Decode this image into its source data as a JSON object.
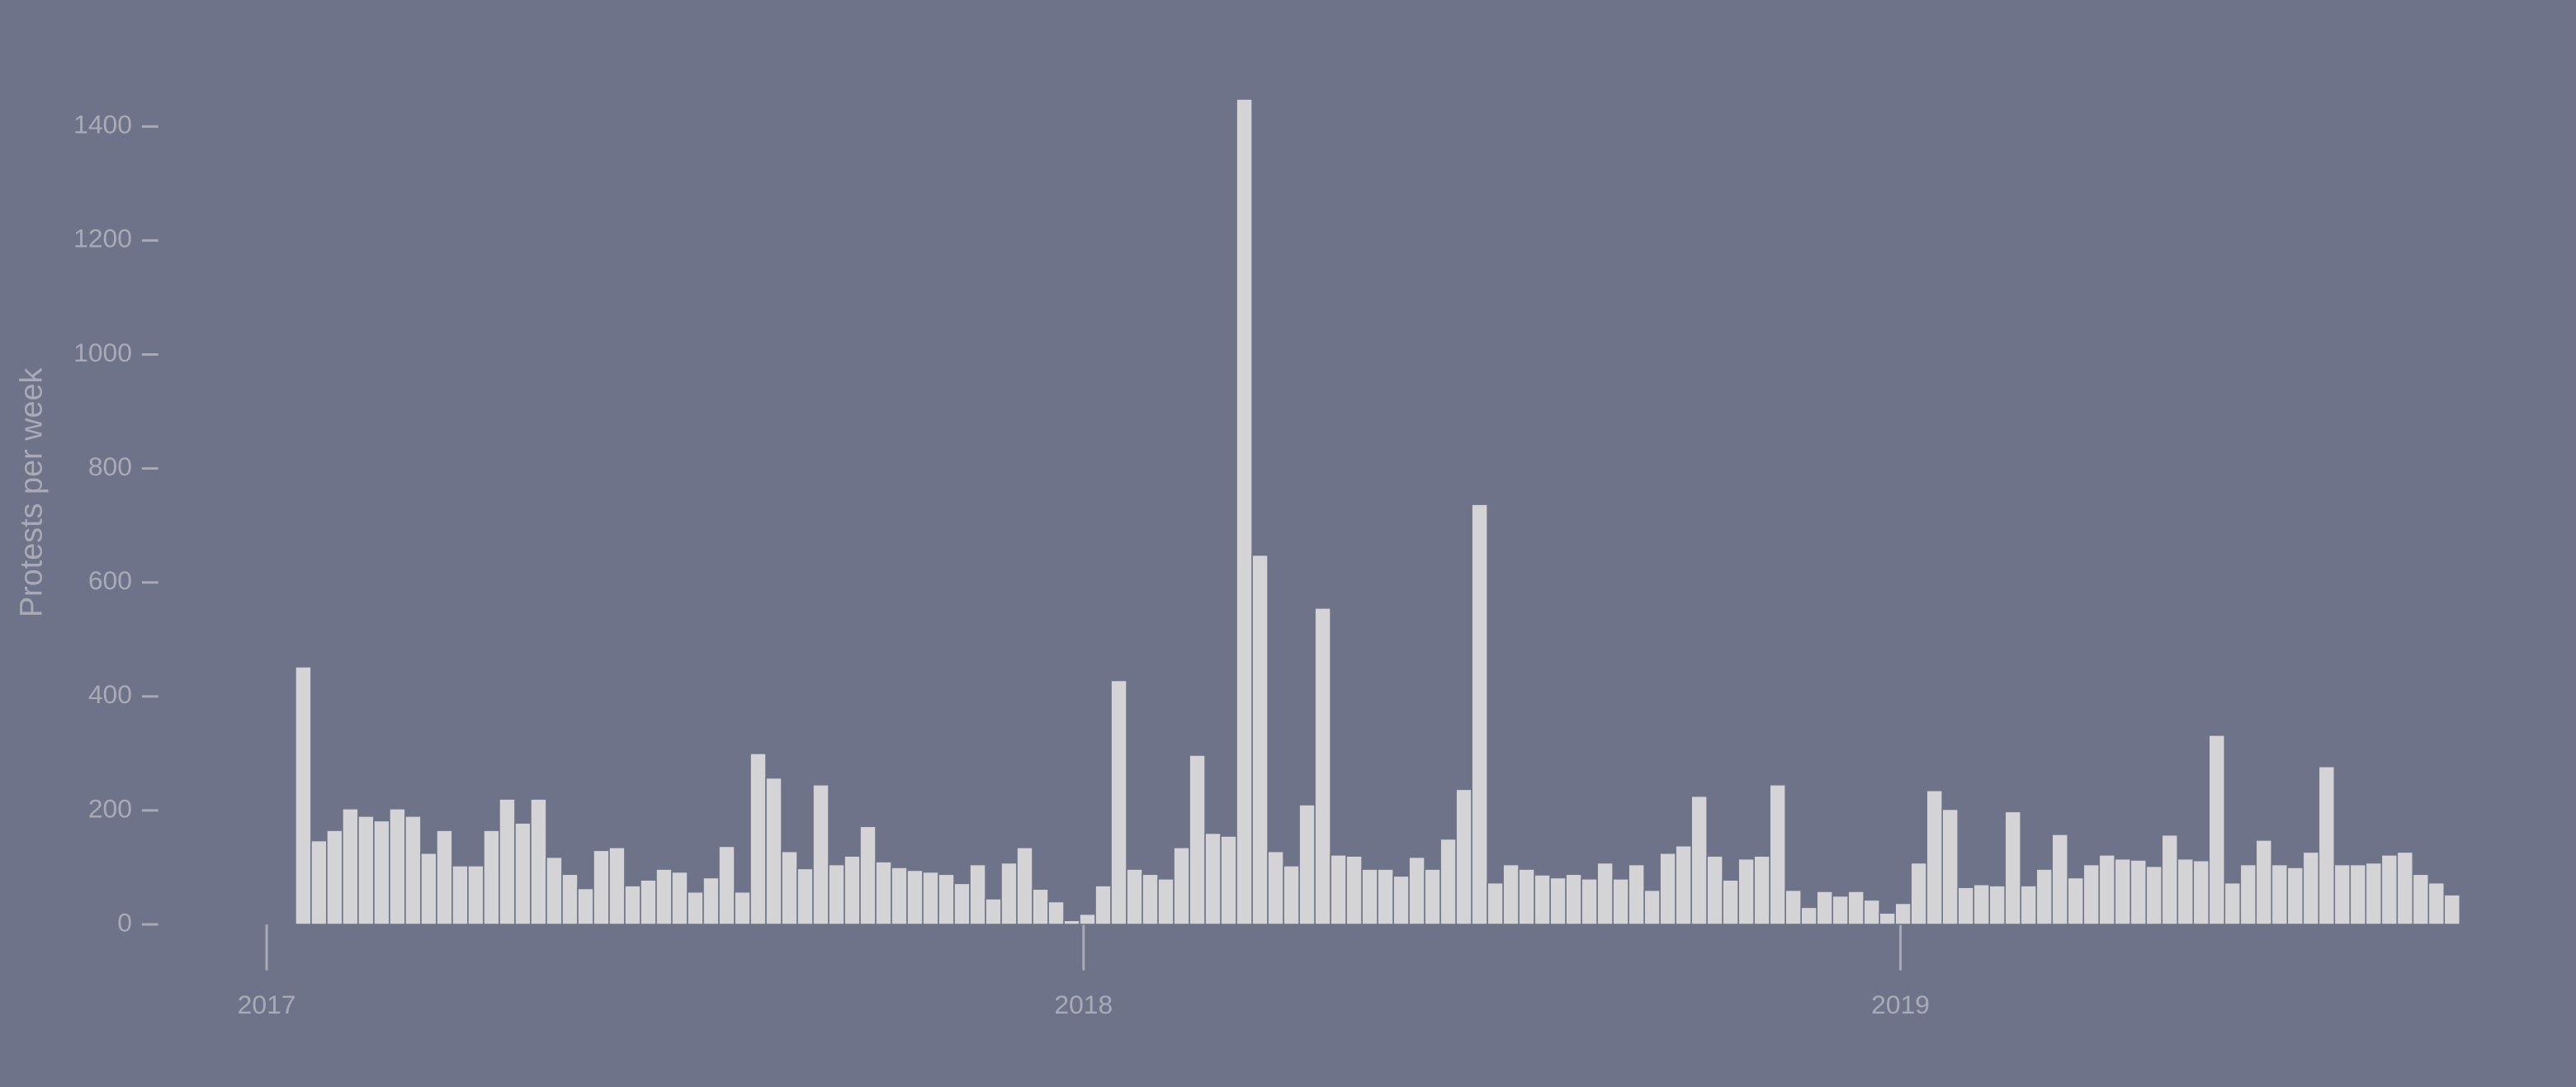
{
  "chart_data": {
    "type": "histogram",
    "ylabel": "Protests per week",
    "color": "#d4d4d6",
    "background": "#6f7389",
    "bins": [
      2017.016,
      2017.0352,
      2017.0544,
      2017.0736,
      2017.0928,
      2017.112,
      2017.1312,
      2017.1504,
      2017.1696,
      2017.1888,
      2017.208,
      2017.2272,
      2017.2464,
      2017.2656,
      2017.2848,
      2017.304,
      2017.3232,
      2017.3424,
      2017.3616,
      2017.3808,
      2017.4,
      2017.4192,
      2017.4384,
      2017.4576,
      2017.4768,
      2017.496,
      2017.5152,
      2017.5344,
      2017.5536,
      2017.5728,
      2017.592,
      2017.6112,
      2017.6304,
      2017.6496,
      2017.6688,
      2017.688,
      2017.7072,
      2017.7264,
      2017.7456,
      2017.7648,
      2017.784,
      2017.8032,
      2017.8224,
      2017.8416,
      2017.8608,
      2017.88,
      2017.8992,
      2017.9184,
      2017.9376,
      2017.9568,
      2017.976,
      2017.9952,
      2018.0144,
      2018.0336,
      2018.0528,
      2018.072,
      2018.0912,
      2018.1104,
      2018.1296,
      2018.1488,
      2018.168,
      2018.1872,
      2018.2064,
      2018.2256,
      2018.2448,
      2018.264,
      2018.2832,
      2018.3024,
      2018.3216,
      2018.3408,
      2018.36,
      2018.3792,
      2018.3984,
      2018.4176,
      2018.4368,
      2018.456,
      2018.4752,
      2018.4944,
      2018.5136,
      2018.5328,
      2018.552,
      2018.5712,
      2018.5904,
      2018.6096,
      2018.6288,
      2018.648,
      2018.6672,
      2018.6864,
      2018.7056,
      2018.7248,
      2018.744,
      2018.7632,
      2018.7824,
      2018.8016,
      2018.8208,
      2018.84,
      2018.8592,
      2018.8784,
      2018.8976,
      2018.9168,
      2018.936,
      2018.9552,
      2018.9744,
      2018.9936,
      2019.0128,
      2019.032,
      2019.0512,
      2019.0704,
      2019.0896,
      2019.1088,
      2019.128,
      2019.1472,
      2019.1664,
      2019.1856,
      2019.2048,
      2019.224,
      2019.2432,
      2019.2624,
      2019.2816,
      2019.3008,
      2019.32,
      2019.3392,
      2019.3584,
      2019.3776,
      2019.3968,
      2019.416,
      2019.4352,
      2019.4544,
      2019.4736,
      2019.4928,
      2019.512,
      2019.5312,
      2019.5504,
      2019.5696,
      2019.5888,
      2019.608,
      2019.6272,
      2019.6464,
      2019.6656,
      2019.6848
    ],
    "values": [
      2,
      452,
      147,
      165,
      203,
      190,
      182,
      203,
      190,
      125,
      165,
      103,
      103,
      165,
      220,
      178,
      220,
      118,
      88,
      63,
      130,
      135,
      68,
      78,
      97,
      92,
      57,
      82,
      137,
      57,
      300,
      257,
      128,
      98,
      245,
      105,
      120,
      172,
      110,
      100,
      95,
      92,
      88,
      72,
      105,
      45,
      108,
      135,
      62,
      40,
      7,
      18,
      68,
      428,
      97,
      88,
      80,
      135,
      297,
      160,
      155,
      1448,
      648,
      128,
      103,
      210,
      555,
      122,
      120,
      97,
      97,
      85,
      118,
      97,
      150,
      237,
      737,
      73,
      105,
      97,
      87,
      82,
      88,
      80,
      108,
      80,
      105,
      60,
      125,
      138,
      225,
      120,
      78,
      115,
      120,
      245,
      60,
      30,
      58,
      50,
      58,
      43,
      20,
      37,
      108,
      235,
      202,
      65,
      70,
      68,
      198,
      68,
      97,
      158,
      82,
      105,
      122,
      115,
      113,
      102,
      157,
      115,
      112,
      332,
      73,
      105,
      148,
      105,
      100,
      127,
      277,
      105,
      105,
      108,
      122,
      127,
      88,
      73,
      52
    ],
    "xlim": [
      2016.9,
      2019.8
    ],
    "xticks": [
      2017,
      2018,
      2019
    ],
    "ylim": [
      0,
      1500
    ],
    "yticks": [
      0,
      200,
      400,
      600,
      800,
      1000,
      1200,
      1400
    ]
  }
}
